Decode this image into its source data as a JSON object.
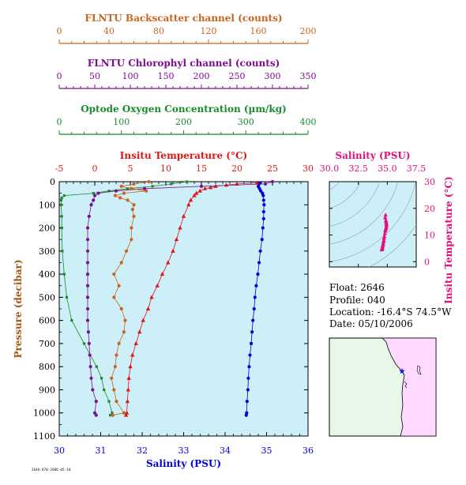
{
  "info": {
    "float": "Float:  2646",
    "profile": "Profile:  040",
    "location": "Location:  -16.4°S  74.5°W",
    "date": "Date:  05/10/2006",
    "stamp": "2646-070-2006-05-10"
  },
  "colors": {
    "backscatter": "#c8641e",
    "chlorophyll": "#7e0d8f",
    "oxygen": "#1a8a2c",
    "temperature": "#e01515",
    "salinity": "#0000dd",
    "ts": "#e0107a",
    "plot_bg": "#cdeff8",
    "land": "#e9f7e9",
    "sea": "#ffd9ff"
  },
  "chart_data": [
    {
      "type": "line",
      "title": "",
      "ylabel": "Pressure (decibar)",
      "ylim": [
        1100,
        0
      ],
      "yticks": [
        "0",
        "100",
        "200",
        "300",
        "400",
        "500",
        "600",
        "700",
        "800",
        "900",
        "1000",
        "1100"
      ],
      "axes": [
        {
          "key": "salinity",
          "label": "Salinity (PSU)",
          "range": [
            30,
            36
          ],
          "ticks": [
            "30",
            "31",
            "32",
            "33",
            "34",
            "35",
            "36"
          ]
        },
        {
          "key": "temperature",
          "label": "Insitu Temperature (°C)",
          "range": [
            -5,
            30
          ],
          "ticks": [
            "-5",
            "0",
            "5",
            "10",
            "15",
            "20",
            "25",
            "30"
          ]
        },
        {
          "key": "oxygen",
          "label": "Optode Oxygen Concentration (µm/kg)",
          "range": [
            0,
            400
          ],
          "ticks": [
            "0",
            "100",
            "200",
            "300",
            "400"
          ]
        },
        {
          "key": "chlorophyll",
          "label": "FLNTU Chlorophyl channel (counts)",
          "range": [
            0,
            350
          ],
          "ticks": [
            "0",
            "50",
            "100",
            "150",
            "200",
            "250",
            "300",
            "350"
          ]
        },
        {
          "key": "backscatter",
          "label": "FLNTU Backscatter channel (counts)",
          "range": [
            0,
            200
          ],
          "ticks": [
            "0",
            "40",
            "80",
            "120",
            "160",
            "200"
          ]
        }
      ],
      "series": [
        {
          "name": "Salinity",
          "axis": "salinity",
          "marker": "circle",
          "pressure": [
            5,
            10,
            20,
            30,
            40,
            50,
            60,
            80,
            100,
            130,
            160,
            200,
            250,
            300,
            350,
            400,
            450,
            500,
            550,
            600,
            650,
            700,
            750,
            800,
            850,
            900,
            950,
            1000,
            1010
          ],
          "values": [
            34.85,
            34.82,
            34.8,
            34.83,
            34.86,
            34.9,
            34.92,
            34.93,
            34.94,
            34.93,
            34.93,
            34.91,
            34.89,
            34.85,
            34.82,
            34.79,
            34.75,
            34.72,
            34.7,
            34.67,
            34.65,
            34.63,
            34.6,
            34.58,
            34.56,
            34.55,
            34.53,
            34.52,
            34.51
          ]
        },
        {
          "name": "Insitu Temperature",
          "axis": "temperature",
          "marker": "triangle",
          "pressure": [
            5,
            10,
            15,
            20,
            25,
            30,
            40,
            50,
            60,
            80,
            100,
            150,
            200,
            250,
            300,
            350,
            400,
            450,
            500,
            550,
            600,
            650,
            700,
            750,
            800,
            850,
            900,
            950,
            1000,
            1010
          ],
          "values": [
            22.8,
            20.0,
            18.5,
            17.0,
            16.3,
            15.5,
            14.8,
            14.3,
            14.0,
            13.5,
            13.2,
            12.5,
            12.0,
            11.5,
            11.0,
            10.3,
            9.5,
            8.8,
            8.0,
            7.5,
            6.8,
            6.3,
            5.8,
            5.3,
            5.0,
            4.8,
            4.7,
            4.6,
            4.5,
            4.4
          ]
        },
        {
          "name": "Oxygen",
          "axis": "oxygen",
          "marker": "square",
          "pressure": [
            0,
            10,
            20,
            30,
            40,
            50,
            60,
            70,
            80,
            100,
            150,
            200,
            300,
            400,
            500,
            600,
            700,
            800,
            850,
            900,
            950,
            1000,
            1010
          ],
          "values": [
            205,
            180,
            150,
            110,
            80,
            55,
            8,
            4,
            3,
            3,
            4,
            4,
            5,
            8,
            12,
            20,
            40,
            60,
            68,
            72,
            80,
            85,
            82
          ]
        },
        {
          "name": "Chlorophyll",
          "axis": "chlorophyll",
          "marker": "circle",
          "pressure": [
            0,
            10,
            20,
            30,
            40,
            50,
            60,
            80,
            100,
            150,
            200,
            250,
            300,
            350,
            400,
            450,
            500,
            550,
            600,
            650,
            700,
            750,
            800,
            850,
            900,
            950,
            1000,
            1010
          ],
          "values": [
            300,
            290,
            200,
            120,
            80,
            55,
            50,
            48,
            45,
            42,
            40,
            40,
            40,
            40,
            40,
            40,
            40,
            40,
            40,
            41,
            42,
            43,
            44,
            45,
            47,
            52,
            50,
            52
          ]
        },
        {
          "name": "Backscatter",
          "axis": "backscatter",
          "marker": "circle",
          "pressure": [
            0,
            10,
            20,
            30,
            40,
            50,
            60,
            70,
            80,
            100,
            120,
            150,
            200,
            250,
            300,
            350,
            400,
            450,
            500,
            550,
            600,
            650,
            700,
            750,
            800,
            850,
            900,
            950,
            1000,
            1010
          ],
          "values": [
            72,
            60,
            50,
            58,
            70,
            52,
            45,
            49,
            55,
            60,
            59,
            60,
            58,
            58,
            54,
            50,
            44,
            48,
            44,
            50,
            53,
            52,
            48,
            46,
            45,
            42,
            44,
            46,
            52,
            43
          ]
        }
      ]
    },
    {
      "type": "scatter",
      "title": "",
      "xlabel": "Salinity (PSU)",
      "ylabel": "Insitu Temperature (°C)",
      "xlim": [
        30.0,
        37.5
      ],
      "ylim": [
        -2,
        30
      ],
      "xticks": [
        "30.0",
        "32.5",
        "35.0",
        "37.5"
      ],
      "yticks": [
        "0",
        "10",
        "20",
        "30"
      ],
      "x": [
        34.85,
        34.82,
        34.88,
        34.9,
        34.92,
        34.93,
        34.93,
        34.91,
        34.89,
        34.85,
        34.82,
        34.79,
        34.75,
        34.72,
        34.7,
        34.67,
        34.65,
        34.63,
        34.6,
        34.58,
        34.56,
        34.55,
        34.53,
        34.52
      ],
      "y": [
        17.5,
        16.5,
        15.5,
        15.0,
        14.5,
        14.0,
        13.6,
        13.0,
        12.5,
        12.0,
        11.5,
        10.5,
        9.5,
        8.8,
        8.0,
        7.5,
        6.8,
        6.3,
        5.8,
        5.3,
        5.0,
        4.8,
        4.6,
        4.5
      ]
    },
    {
      "type": "map",
      "title": "",
      "float_lon": -74.5,
      "float_lat": -16.4
    }
  ]
}
